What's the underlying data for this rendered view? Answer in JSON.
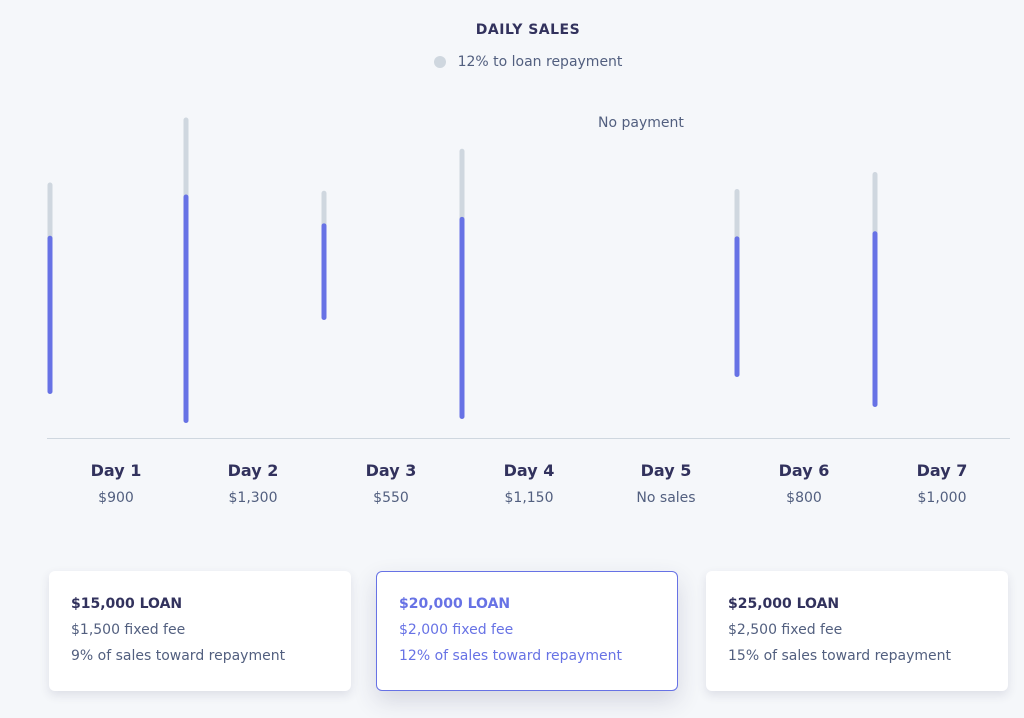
{
  "chart_data": {
    "type": "bar",
    "title": "DAILY SALES",
    "legend": [
      {
        "label": "12% to loan repayment",
        "color": "#cfd7df"
      }
    ],
    "categories": [
      "Day 1",
      "Day 2",
      "Day 3",
      "Day 4",
      "Day 5",
      "Day 6",
      "Day 7"
    ],
    "value_labels": [
      "$900",
      "$1,300",
      "$550",
      "$1,150",
      "No sales",
      "$800",
      "$1,000"
    ],
    "series": [
      {
        "name": "Daily sales",
        "values": [
          900,
          1300,
          550,
          1150,
          0,
          800,
          1000
        ]
      }
    ],
    "repayment_share": 0.12,
    "annotation": "No payment",
    "annotation_category": "Day 5",
    "colors": {
      "sales": "#6772e5",
      "repayment": "#cfd7df",
      "axis": "#cfd7df"
    }
  },
  "loans": [
    {
      "title": "$15,000 LOAN",
      "fee": "$1,500 fixed fee",
      "share": "9% of sales toward repayment",
      "selected": false
    },
    {
      "title": "$20,000 LOAN",
      "fee": "$2,000 fixed fee",
      "share": "12% of sales toward repayment",
      "selected": true
    },
    {
      "title": "$25,000 LOAN",
      "fee": "$2,500 fixed fee",
      "share": "15% of sales toward repayment",
      "selected": false
    }
  ],
  "colors": {
    "accent": "#6772e5",
    "background": "#f5f7fa",
    "text": "#32325d",
    "muted_text": "#525f7f"
  }
}
